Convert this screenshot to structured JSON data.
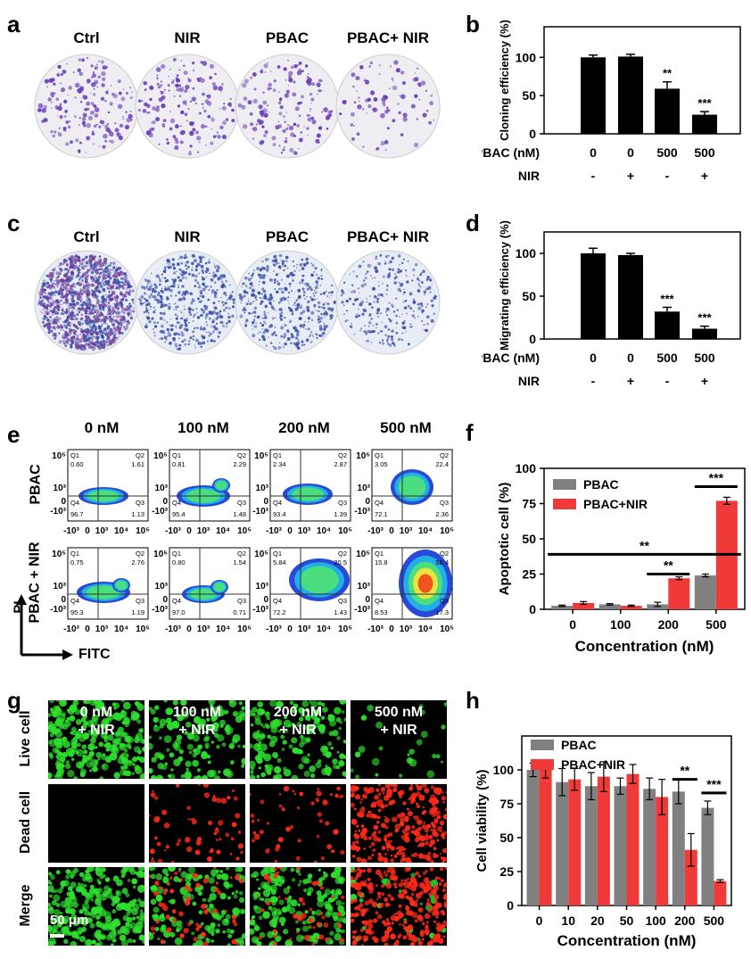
{
  "panels": {
    "a": {
      "label": "a",
      "conditions": [
        "Ctrl",
        "NIR",
        "PBAC",
        "PBAC+ NIR"
      ]
    },
    "c": {
      "label": "c",
      "conditions": [
        "Ctrl",
        "NIR",
        "PBAC",
        "PBAC+ NIR"
      ]
    },
    "e": {
      "label": "e",
      "concentrations": [
        "0 nM",
        "100 nM",
        "200 nM",
        "500 nM"
      ],
      "rows": [
        "PBAC",
        "PBAC + NIR"
      ],
      "y_axis": "PI",
      "x_axis": "FITC",
      "ticks_y": [
        "10⁵",
        "10³",
        "0",
        "-10³"
      ],
      "ticks_x": [
        "-10³",
        "0",
        "10³",
        "10⁴",
        "10⁵"
      ],
      "quadrants": [
        [
          {
            "q1": "0.60",
            "q2": "1.61",
            "q4": "96.7",
            "q3": "1.13"
          },
          {
            "q1": "0.81",
            "q2": "2.29",
            "q4": "95.4",
            "q3": "1.48"
          },
          {
            "q1": "2.34",
            "q2": "2.87",
            "q4": "93.4",
            "q3": "1.39"
          },
          {
            "q1": "3.05",
            "q2": "22.4",
            "q4": "72.1",
            "q3": "2.36"
          }
        ],
        [
          {
            "q1": "0.75",
            "q2": "2.76",
            "q4": "95.3",
            "q3": "1.19"
          },
          {
            "q1": "0.80",
            "q2": "1.54",
            "q4": "97.0",
            "q3": "0.71"
          },
          {
            "q1": "5.84",
            "q2": "20.5",
            "q4": "72.2",
            "q3": "1.43"
          },
          {
            "q1": "15.8",
            "q2": "58.4",
            "q4": "8.53",
            "q3": "17.3"
          }
        ]
      ]
    },
    "g": {
      "label": "g",
      "columns": [
        "0 nM\n+ NIR",
        "100 nM\n+ NIR",
        "200 nM\n+ NIR",
        "500 nM\n+ NIR"
      ],
      "rows": [
        "Live cell",
        "Dead cell",
        "Merge"
      ],
      "scale": "50 μm"
    }
  },
  "chart_data": [
    {
      "id": "b",
      "label": "b",
      "type": "bar",
      "ylabel": "Cloning efficiency (%)",
      "ylim": [
        0,
        140
      ],
      "yticks": [
        0,
        50,
        100
      ],
      "values": [
        100,
        101,
        59,
        25
      ],
      "errors": [
        3,
        3,
        9,
        4
      ],
      "signif": [
        "",
        "",
        "**",
        "***"
      ],
      "row_labels": [
        {
          "name": "PBAC (nM)",
          "values": [
            "0",
            "0",
            "500",
            "500"
          ]
        },
        {
          "name": "NIR",
          "values": [
            "-",
            "+",
            "-",
            "+"
          ]
        }
      ]
    },
    {
      "id": "d",
      "label": "d",
      "type": "bar",
      "ylabel": "Migrating efficiency (%)",
      "ylim": [
        0,
        125
      ],
      "yticks": [
        0,
        50,
        100
      ],
      "values": [
        100,
        98,
        32,
        12
      ],
      "errors": [
        6,
        2,
        5,
        3
      ],
      "signif": [
        "",
        "",
        "***",
        "***"
      ],
      "row_labels": [
        {
          "name": "PBAC (nM)",
          "values": [
            "0",
            "0",
            "500",
            "500"
          ]
        },
        {
          "name": "NIR",
          "values": [
            "-",
            "+",
            "-",
            "+"
          ]
        }
      ]
    },
    {
      "id": "f",
      "label": "f",
      "type": "bar",
      "ylabel": "Apoptotic cell (%)",
      "xlabel": "Concentration (nM)",
      "ylim": [
        0,
        100
      ],
      "yticks": [
        0,
        25,
        50,
        75,
        100
      ],
      "categories": [
        "0",
        "100",
        "200",
        "500"
      ],
      "series": [
        {
          "name": "PBAC",
          "color": "#808080",
          "values": [
            2.5,
            3.5,
            3.5,
            24
          ],
          "errors": [
            0.5,
            0.5,
            1.5,
            1
          ]
        },
        {
          "name": "PBAC+NIR",
          "color": "#f03a3a",
          "values": [
            4.5,
            2.5,
            22,
            77
          ],
          "errors": [
            1,
            0.5,
            1,
            2.5
          ]
        }
      ],
      "annotations": [
        {
          "text": "**",
          "from": 0,
          "to": 3,
          "y": 39
        },
        {
          "text": "**",
          "from": 2,
          "to": 2,
          "y": 25
        },
        {
          "text": "***",
          "from": 3,
          "to": 3,
          "y": 87
        }
      ]
    },
    {
      "id": "h",
      "label": "h",
      "type": "bar",
      "ylabel": "Cell viability (%)",
      "xlabel": "Concentration (nM)",
      "ylim": [
        0,
        125
      ],
      "yticks": [
        0,
        25,
        50,
        75,
        100
      ],
      "categories": [
        "0",
        "10",
        "20",
        "50",
        "100",
        "200",
        "500"
      ],
      "series": [
        {
          "name": "PBAC",
          "color": "#808080",
          "values": [
            100,
            91,
            88,
            88,
            86,
            84,
            72
          ],
          "errors": [
            5,
            10,
            10,
            6,
            8,
            9,
            5
          ]
        },
        {
          "name": "PBAC+NIR",
          "color": "#f03a3a",
          "values": [
            100,
            93,
            95,
            97,
            80,
            41,
            18
          ],
          "errors": [
            6,
            8,
            11,
            7,
            13,
            12,
            1
          ]
        }
      ],
      "annotations": [
        {
          "text": "**",
          "from": 5,
          "to": 5,
          "y": 93
        },
        {
          "text": "***",
          "from": 6,
          "to": 6,
          "y": 83
        }
      ]
    }
  ]
}
